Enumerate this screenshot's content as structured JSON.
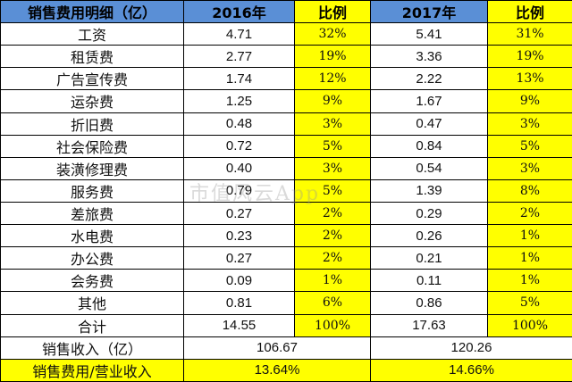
{
  "header": {
    "category": "销售费用明细（亿）",
    "year_2016": "2016年",
    "ratio_2016": "比例",
    "year_2017": "2017年",
    "ratio_2017": "比例"
  },
  "rows": [
    {
      "name": "工资",
      "v2016": "4.71",
      "r2016": "32%",
      "v2017": "5.41",
      "r2017": "31%"
    },
    {
      "name": "租赁费",
      "v2016": "2.77",
      "r2016": "19%",
      "v2017": "3.36",
      "r2017": "19%"
    },
    {
      "name": "广告宣传费",
      "v2016": "1.74",
      "r2016": "12%",
      "v2017": "2.22",
      "r2017": "13%"
    },
    {
      "name": "运杂费",
      "v2016": "1.25",
      "r2016": "9%",
      "v2017": "1.67",
      "r2017": "9%"
    },
    {
      "name": "折旧费",
      "v2016": "0.48",
      "r2016": "3%",
      "v2017": "0.47",
      "r2017": "3%"
    },
    {
      "name": "社会保险费",
      "v2016": "0.72",
      "r2016": "5%",
      "v2017": "0.84",
      "r2017": "5%"
    },
    {
      "name": "装潢修理费",
      "v2016": "0.40",
      "r2016": "3%",
      "v2017": "0.54",
      "r2017": "3%"
    },
    {
      "name": "服务费",
      "v2016": "0.79",
      "r2016": "5%",
      "v2017": "1.39",
      "r2017": "8%"
    },
    {
      "name": "差旅费",
      "v2016": "0.27",
      "r2016": "2%",
      "v2017": "0.29",
      "r2017": "2%"
    },
    {
      "name": "水电费",
      "v2016": "0.23",
      "r2016": "2%",
      "v2017": "0.26",
      "r2017": "1%"
    },
    {
      "name": "办公费",
      "v2016": "0.27",
      "r2016": "2%",
      "v2017": "0.21",
      "r2017": "1%"
    },
    {
      "name": "会务费",
      "v2016": "0.09",
      "r2016": "1%",
      "v2017": "0.11",
      "r2017": "1%"
    },
    {
      "name": "其他",
      "v2016": "0.81",
      "r2016": "6%",
      "v2017": "0.86",
      "r2017": "5%"
    }
  ],
  "total": {
    "name": "合计",
    "v2016": "14.55",
    "r2016": "100%",
    "v2017": "17.63",
    "r2017": "100%"
  },
  "revenue": {
    "name": "销售收入（亿）",
    "v2016": "106.67",
    "v2017": "120.26"
  },
  "ratio_row": {
    "name": "销售费用/营业收入",
    "v2016": "13.64%",
    "v2017": "14.66%"
  },
  "watermark": "市值风云App",
  "colors": {
    "header_blue": "#5a8fd6",
    "highlight_yellow": "#ffff00"
  }
}
